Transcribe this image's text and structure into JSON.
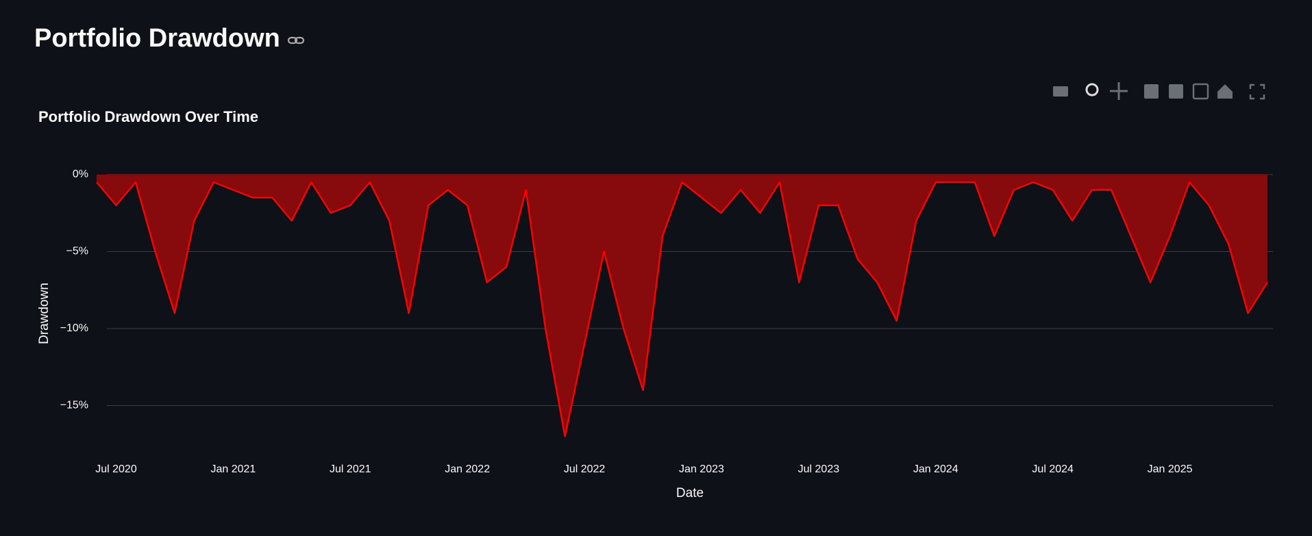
{
  "page_title": "Portfolio Drawdown",
  "chart_data": {
    "type": "area",
    "title": "Portfolio Drawdown Over Time",
    "xlabel": "Date",
    "ylabel": "Drawdown",
    "x": [
      "2020-06",
      "2020-07",
      "2020-08",
      "2020-09",
      "2020-10",
      "2020-11",
      "2020-12",
      "2021-01",
      "2021-02",
      "2021-03",
      "2021-04",
      "2021-05",
      "2021-06",
      "2021-07",
      "2021-08",
      "2021-09",
      "2021-10",
      "2021-11",
      "2021-12",
      "2022-01",
      "2022-02",
      "2022-03",
      "2022-04",
      "2022-05",
      "2022-06",
      "2022-07",
      "2022-08",
      "2022-09",
      "2022-10",
      "2022-11",
      "2022-12",
      "2023-01",
      "2023-02",
      "2023-03",
      "2023-04",
      "2023-05",
      "2023-06",
      "2023-07",
      "2023-08",
      "2023-09",
      "2023-10",
      "2023-11",
      "2023-12",
      "2024-01",
      "2024-02",
      "2024-03",
      "2024-04",
      "2024-05",
      "2024-06",
      "2024-07",
      "2024-08",
      "2024-09",
      "2024-10",
      "2024-11",
      "2024-12",
      "2025-01",
      "2025-02",
      "2025-03",
      "2025-04",
      "2025-05",
      "2025-06"
    ],
    "values": [
      -0.5,
      -2,
      -0.5,
      -5,
      -9,
      -3,
      -0.5,
      -1,
      -1.5,
      -1.5,
      -3,
      -0.5,
      -2.5,
      -2,
      -0.5,
      -3,
      -9,
      -2,
      -1,
      -2,
      -7,
      -6,
      -1,
      -10,
      -17,
      -11,
      -5,
      -10,
      -14,
      -4,
      -0.5,
      -1.5,
      -2.5,
      -1,
      -2.5,
      -0.5,
      -7,
      -2,
      -2,
      -5.5,
      -7,
      -9.5,
      -3,
      -0.5,
      -0.5,
      -0.5,
      -4,
      -1,
      -0.5,
      -1,
      -3,
      -1,
      -1,
      -4,
      -7,
      -4,
      -0.5,
      -2,
      -4.5,
      -9,
      -7
    ],
    "color": "#ff0000",
    "fill_color": "#870a0d",
    "xlim": [
      "2020-06",
      "2025-06"
    ],
    "xticks": [
      {
        "value": "2020-07",
        "label": "Jul 2020"
      },
      {
        "value": "2021-01",
        "label": "Jan 2021"
      },
      {
        "value": "2021-07",
        "label": "Jul 2021"
      },
      {
        "value": "2022-01",
        "label": "Jan 2022"
      },
      {
        "value": "2022-07",
        "label": "Jul 2022"
      },
      {
        "value": "2023-01",
        "label": "Jan 2023"
      },
      {
        "value": "2023-07",
        "label": "Jul 2023"
      },
      {
        "value": "2024-01",
        "label": "Jan 2024"
      },
      {
        "value": "2024-07",
        "label": "Jul 2024"
      },
      {
        "value": "2025-01",
        "label": "Jan 2025"
      }
    ],
    "ylim": [
      -18,
      0
    ],
    "yticks": [
      {
        "value": 0,
        "label": "0%"
      },
      {
        "value": -5,
        "label": "−5%"
      },
      {
        "value": -10,
        "label": "−10%"
      },
      {
        "value": -15,
        "label": "−15%"
      }
    ],
    "grid": true
  }
}
